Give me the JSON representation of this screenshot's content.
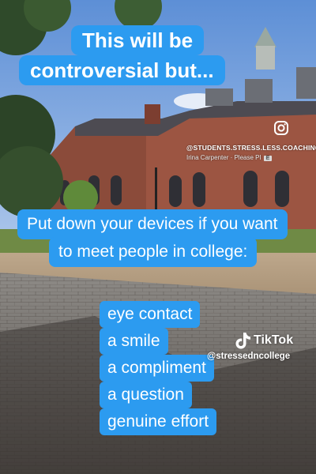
{
  "headline": {
    "lines": [
      "This will be",
      "controversial but..."
    ]
  },
  "tip": {
    "lines": [
      "Put down your devices if you want",
      "to meet people in college:"
    ]
  },
  "list": {
    "items": [
      "eye contact",
      "a smile",
      "a compliment",
      "a question",
      "genuine effort"
    ]
  },
  "watermark": {
    "instagram_handle": "@STUDENTS.STRESS.LESS.COACHING",
    "credit": "Irina Carpenter · Please PI",
    "credit_badge": "E"
  },
  "tiktok": {
    "brand": "TikTok",
    "handle": "@stressedncollege"
  }
}
